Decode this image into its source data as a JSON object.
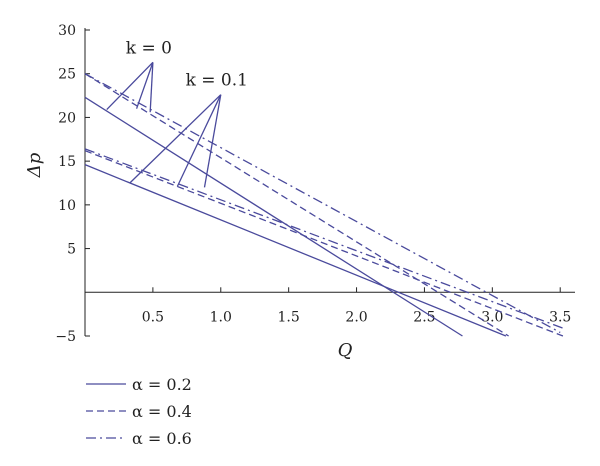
{
  "chart_data": {
    "type": "line",
    "xlabel": "Q",
    "ylabel": "Δp",
    "xlim": [
      0,
      3.55
    ],
    "ylim": [
      -5,
      30
    ],
    "xticks": [
      0.5,
      1.0,
      1.5,
      2.0,
      2.5,
      3.0,
      3.5
    ],
    "xtick_labels": [
      "0.5",
      "1.0",
      "1.5",
      "2.0",
      "2.5",
      "3.0",
      "3.5"
    ],
    "yticks": [
      -5,
      5,
      10,
      15,
      20,
      25,
      30
    ],
    "ytick_labels": [
      "−5",
      "5",
      "10",
      "15",
      "20",
      "25",
      "30"
    ],
    "line_color": "#4a4a9c",
    "grid": false,
    "series": [
      {
        "name": "α = 0.2",
        "k": "k = 0",
        "dash": "solid",
        "x": [
          0,
          2.78
        ],
        "y": [
          22.3,
          -5
        ]
      },
      {
        "name": "α = 0.4",
        "k": "k = 0",
        "dash": "dashed",
        "x": [
          0,
          3.12
        ],
        "y": [
          25.0,
          -5
        ]
      },
      {
        "name": "α = 0.6",
        "k": "k = 0",
        "dash": "dashdot",
        "x": [
          0,
          3.5
        ],
        "y": [
          25.0,
          -4.6
        ]
      },
      {
        "name": "α = 0.2",
        "k": "k = 0.1",
        "dash": "solid",
        "x": [
          0,
          3.1
        ],
        "y": [
          14.6,
          -5
        ]
      },
      {
        "name": "α = 0.4",
        "k": "k = 0.1",
        "dash": "dashed",
        "x": [
          0,
          3.52
        ],
        "y": [
          16.2,
          -5
        ]
      },
      {
        "name": "α = 0.6",
        "k": "k = 0.1",
        "dash": "dashdot",
        "x": [
          0,
          3.52
        ],
        "y": [
          16.4,
          -4.1
        ]
      }
    ],
    "annotations": [
      {
        "text": "k = 0",
        "label_at": [
          0.5,
          26.3
        ],
        "pointers": [
          [
            0.16,
            20.9
          ],
          [
            0.38,
            21.0
          ],
          [
            0.48,
            20.6
          ]
        ]
      },
      {
        "text": "k = 0.1",
        "label_at": [
          1.0,
          22.6
        ],
        "pointers": [
          [
            0.33,
            12.5
          ],
          [
            0.68,
            12.1
          ],
          [
            0.88,
            12.0
          ]
        ]
      }
    ],
    "legend": {
      "position": "bottom-left",
      "items": [
        {
          "label": "α = 0.2",
          "dash": "solid"
        },
        {
          "label": "α = 0.4",
          "dash": "dashed"
        },
        {
          "label": "α = 0.6",
          "dash": "dashdot"
        }
      ]
    }
  }
}
